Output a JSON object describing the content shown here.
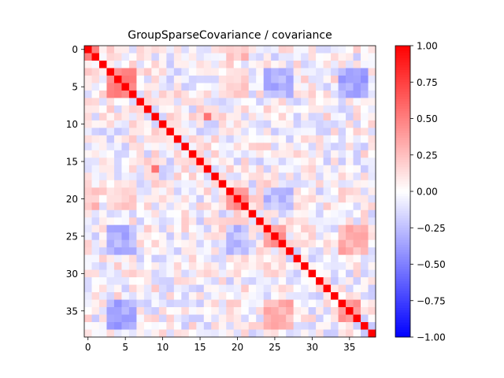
{
  "chart_data": {
    "type": "heatmap",
    "title": "GroupSparseCovariance / covariance",
    "xlabel": "",
    "ylabel": "",
    "n": 39,
    "x_ticks": [
      0,
      5,
      10,
      15,
      20,
      25,
      30,
      35
    ],
    "y_ticks": [
      0,
      5,
      10,
      15,
      20,
      25,
      30,
      35
    ],
    "colormap": "bwr",
    "vmin": -1.0,
    "vmax": 1.0,
    "colorbar_ticks": [
      "1.00",
      "0.75",
      "0.50",
      "0.25",
      "0.00",
      "−0.25",
      "−0.50",
      "−0.75",
      "−1.00"
    ],
    "colorbar_values": [
      1.0,
      0.75,
      0.5,
      0.25,
      0.0,
      -0.25,
      -0.5,
      -0.75,
      -1.0
    ],
    "diagonal_value": 1.0,
    "blocks": [
      {
        "from": 0,
        "to": 1,
        "value": 0.55
      },
      {
        "from": 3,
        "to": 6,
        "value": 0.5
      },
      {
        "from": 19,
        "to": 21,
        "value": 0.45
      },
      {
        "from": 24,
        "to": 26,
        "value": 0.4
      },
      {
        "from": 34,
        "to": 36,
        "value": 0.4
      }
    ],
    "offblock_pairs": [
      {
        "rows": [
          3,
          6
        ],
        "cols": [
          34,
          37
        ],
        "value": -0.35
      },
      {
        "rows": [
          3,
          6
        ],
        "cols": [
          24,
          27
        ],
        "value": -0.3
      },
      {
        "rows": [
          34,
          37
        ],
        "cols": [
          24,
          27
        ],
        "value": 0.3
      },
      {
        "rows": [
          19,
          21
        ],
        "cols": [
          24,
          27
        ],
        "value": -0.25
      },
      {
        "rows": [
          3,
          6
        ],
        "cols": [
          19,
          21
        ],
        "value": 0.2
      },
      {
        "rows": [
          0,
          1
        ],
        "cols": [
          19,
          21
        ],
        "value": 0.25
      }
    ],
    "notable_cells": [
      {
        "row": 9,
        "col": 16,
        "value": 0.55
      },
      {
        "row": 16,
        "col": 9,
        "value": 0.55
      }
    ],
    "noise_amplitude": 0.22,
    "colors": {
      "low": "#0000ff",
      "mid": "#ffffff",
      "high": "#ff0000"
    }
  }
}
